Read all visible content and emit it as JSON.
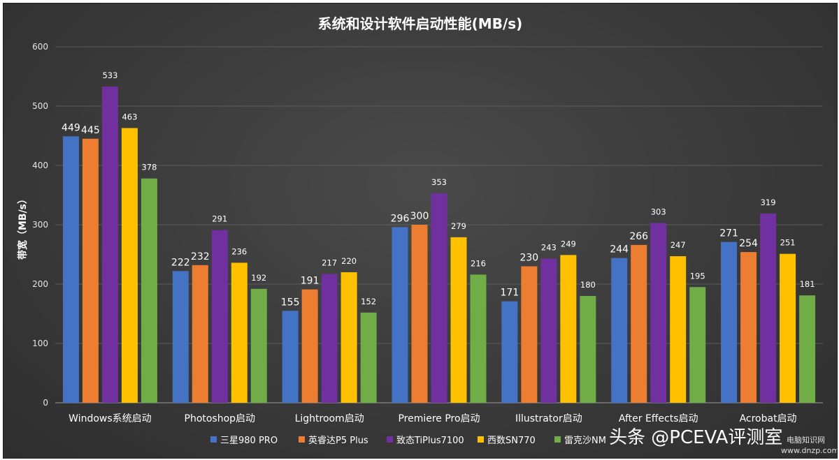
{
  "chart_data": {
    "type": "bar",
    "title": "系统和设计软件启动性能(MB/s)",
    "ylabel": "带宽（MB/s）",
    "xlabel": "",
    "ylim": [
      0,
      600
    ],
    "yticks": [
      0,
      100,
      200,
      300,
      400,
      500,
      600
    ],
    "grid": true,
    "legend_position": "bottom",
    "categories": [
      "Windows系统启动",
      "Photoshop启动",
      "Lightroom启动",
      "Premiere Pro启动",
      "Illustrator启动",
      "After Effects启动",
      "Acrobat启动"
    ],
    "series": [
      {
        "name": "三星980 PRO",
        "color": "#4472c4",
        "values": [
          449,
          222,
          155,
          296,
          171,
          244,
          271
        ]
      },
      {
        "name": "英睿达P5 Plus",
        "color": "#ed7d31",
        "values": [
          445,
          232,
          191,
          300,
          230,
          266,
          254
        ]
      },
      {
        "name": "致态TiPlus7100",
        "color": "#7030a0",
        "values": [
          533,
          291,
          217,
          353,
          243,
          303,
          319
        ]
      },
      {
        "name": "西数SN770",
        "color": "#ffc000",
        "values": [
          463,
          236,
          220,
          279,
          249,
          247,
          251
        ]
      },
      {
        "name": "雷克沙NM",
        "color": "#70ad47",
        "values": [
          378,
          192,
          152,
          216,
          180,
          195,
          181
        ]
      }
    ]
  },
  "watermark": {
    "text": "头条 @PCEVA评测室",
    "site": "电脑知识网",
    "url": "www.dnzp.com"
  }
}
